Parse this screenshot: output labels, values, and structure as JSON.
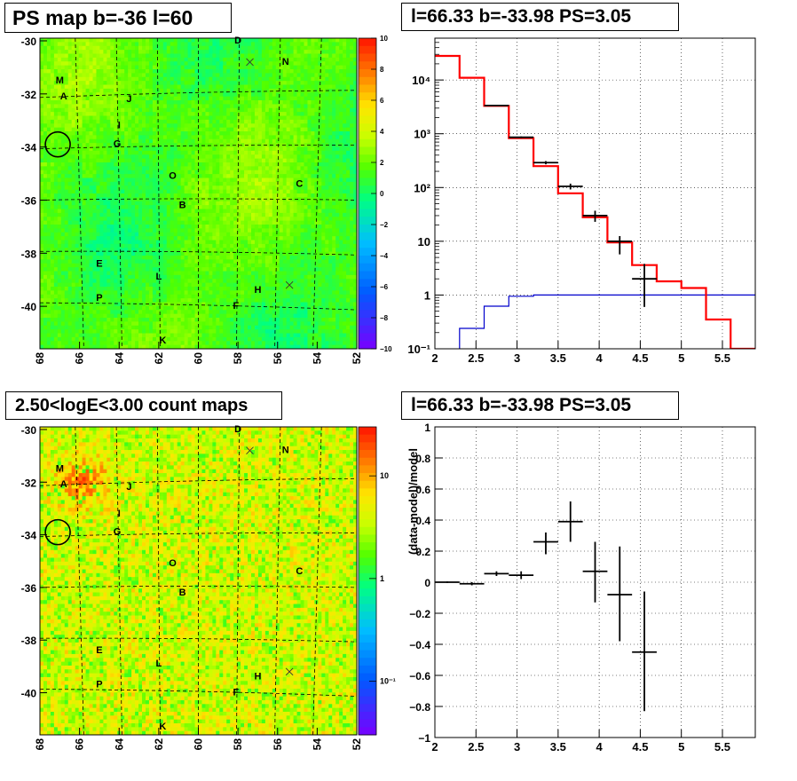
{
  "panels": {
    "ps_map": {
      "title": "PS map b=-36 l=60",
      "y_ticks": [
        -30,
        -32,
        -34,
        -36,
        -38,
        -40
      ],
      "x_ticks": [
        68,
        66,
        64,
        62,
        60,
        58,
        56,
        54,
        52
      ],
      "color_scale": "linear",
      "color_ticks": [
        10,
        8,
        6,
        4,
        2,
        0,
        -2,
        -4,
        -6,
        -8,
        -10
      ],
      "color_tick_labels": [
        "10",
        "8",
        "6",
        "4",
        "2",
        "0",
        "−2",
        "−4",
        "−6",
        "−8",
        "−10"
      ]
    },
    "count_map": {
      "title": "2.50<logE<3.00 count maps",
      "y_ticks": [
        -30,
        -32,
        -34,
        -36,
        -38,
        -40
      ],
      "x_ticks": [
        68,
        66,
        64,
        62,
        60,
        58,
        56,
        54,
        52
      ],
      "color_scale": "log",
      "color_tick_labels": [
        "10",
        "1",
        "10⁻¹"
      ]
    },
    "spectrum": {
      "title": "l=66.33 b=-33.98 PS=3.05"
    },
    "residual": {
      "title": "l=66.33 b=-33.98 PS=3.05"
    }
  },
  "source_labels": [
    {
      "text": "D",
      "l": 58.0,
      "b": -30.1
    },
    {
      "text": "N",
      "l": 55.6,
      "b": -30.9
    },
    {
      "text": "M",
      "l": 67.0,
      "b": -31.6
    },
    {
      "text": "A",
      "l": 66.8,
      "b": -32.2
    },
    {
      "text": "J",
      "l": 63.5,
      "b": -32.3
    },
    {
      "text": "I",
      "l": 64.0,
      "b": -33.3
    },
    {
      "text": "G",
      "l": 64.1,
      "b": -34.0
    },
    {
      "text": "O",
      "l": 61.3,
      "b": -35.2
    },
    {
      "text": "C",
      "l": 54.9,
      "b": -35.5
    },
    {
      "text": "B",
      "l": 60.8,
      "b": -36.3
    },
    {
      "text": "E",
      "l": 65.0,
      "b": -38.5
    },
    {
      "text": "L",
      "l": 62.0,
      "b": -39.0
    },
    {
      "text": "H",
      "l": 57.0,
      "b": -39.5
    },
    {
      "text": "P",
      "l": 65.0,
      "b": -39.8
    },
    {
      "text": "F",
      "l": 58.1,
      "b": -40.1
    },
    {
      "text": "K",
      "l": 61.8,
      "b": -41.4
    }
  ],
  "cross_markers": [
    {
      "l": 57.4,
      "b": -30.8
    },
    {
      "l": 55.4,
      "b": -39.2
    }
  ],
  "circle_marker": {
    "l": 67.1,
    "b": -33.9
  },
  "chart_data": [
    {
      "type": "heatmap",
      "title": "PS map b=-36 l=60",
      "xlim": [
        68,
        52
      ],
      "ylim": [
        -41.6,
        -29.9
      ],
      "zlim": [
        -10,
        10
      ],
      "description_values": "PS value field, mostly near 0 to 2 (green), with few localized peaks up to about 3"
    },
    {
      "type": "heatmap",
      "title": "2.50<logE<3.00 count maps",
      "xlim": [
        68,
        52
      ],
      "ylim": [
        -41.6,
        -29.9
      ],
      "zlim": [
        0.03,
        30
      ],
      "zscale": "log"
    },
    {
      "type": "line",
      "title": "l=66.33 b=-33.98 PS=3.05",
      "xlim": [
        2,
        5.9
      ],
      "ylim": [
        0.1,
        60000
      ],
      "yscale": "log",
      "x_ticks": [
        2,
        2.5,
        3,
        3.5,
        4,
        4.5,
        5,
        5.5
      ],
      "x_tick_labels": [
        "2",
        "2.5",
        "3",
        "3.5",
        "4",
        "4.5",
        "5",
        "5.5"
      ],
      "y_ticks": [
        0.1,
        1,
        10,
        100,
        1000,
        10000
      ],
      "y_tick_labels": [
        "10⁻¹",
        "1",
        "10",
        "10²",
        "10³",
        "10⁴"
      ],
      "bin_edges": [
        2.0,
        2.3,
        2.6,
        2.9,
        3.2,
        3.5,
        3.8,
        4.1,
        4.4,
        4.7,
        5.0,
        5.3,
        5.6,
        5.9
      ],
      "series": [
        {
          "color": "#ff0000",
          "style": "step",
          "values": [
            28000,
            11000,
            3300,
            830,
            250,
            78,
            28,
            9.5,
            3.6,
            1.8,
            1.35,
            0.35,
            0.1
          ]
        },
        {
          "color": "#0000cc",
          "style": "step",
          "values": [
            0.08,
            0.24,
            0.62,
            0.95,
            1.0,
            1.0,
            1.0,
            1.0,
            1.0,
            1.0,
            1.0,
            1.0,
            1.0
          ]
        },
        {
          "color": "#000000",
          "style": "errorbar",
          "points": [
            {
              "x": 2.75,
              "y": 3350,
              "xerr": 0.15,
              "lo": 3280,
              "hi": 3420
            },
            {
              "x": 3.05,
              "y": 860,
              "xerr": 0.15,
              "lo": 830,
              "hi": 890
            },
            {
              "x": 3.35,
              "y": 290,
              "xerr": 0.15,
              "lo": 270,
              "hi": 310
            },
            {
              "x": 3.65,
              "y": 105,
              "xerr": 0.15,
              "lo": 92,
              "hi": 118
            },
            {
              "x": 3.95,
              "y": 30,
              "xerr": 0.15,
              "lo": 23,
              "hi": 37
            },
            {
              "x": 4.25,
              "y": 10,
              "xerr": 0.15,
              "lo": 5.7,
              "hi": 12.5
            },
            {
              "x": 4.55,
              "y": 2.0,
              "xerr": 0.15,
              "lo": 0.6,
              "hi": 3.8
            }
          ]
        }
      ]
    },
    {
      "type": "scatter",
      "title": "l=66.33 b=-33.98 PS=3.05",
      "xlabel": "",
      "ylabel": "(data-model)/model",
      "xlim": [
        2,
        5.9
      ],
      "ylim": [
        -1,
        1
      ],
      "x_ticks": [
        2,
        2.5,
        3,
        3.5,
        4,
        4.5,
        5,
        5.5
      ],
      "x_tick_labels": [
        "2",
        "2.5",
        "3",
        "3.5",
        "4",
        "4.5",
        "5",
        "5.5"
      ],
      "y_ticks": [
        -1,
        -0.8,
        -0.6,
        -0.4,
        -0.2,
        0,
        0.2,
        0.4,
        0.6,
        0.8,
        1
      ],
      "y_tick_labels": [
        "−1",
        "−0.8",
        "−0.6",
        "−0.4",
        "−0.2",
        "0",
        "0.2",
        "0.4",
        "0.6",
        "0.8",
        "1"
      ],
      "points": [
        {
          "x": 2.15,
          "y": 0.0,
          "xerr": 0.15,
          "lo": -0.005,
          "hi": 0.005
        },
        {
          "x": 2.45,
          "y": -0.01,
          "xerr": 0.15,
          "lo": -0.02,
          "hi": 0.0
        },
        {
          "x": 2.75,
          "y": 0.055,
          "xerr": 0.15,
          "lo": 0.04,
          "hi": 0.07
        },
        {
          "x": 3.05,
          "y": 0.045,
          "xerr": 0.15,
          "lo": 0.02,
          "hi": 0.07
        },
        {
          "x": 3.35,
          "y": 0.26,
          "xerr": 0.15,
          "lo": 0.18,
          "hi": 0.32
        },
        {
          "x": 3.65,
          "y": 0.39,
          "xerr": 0.15,
          "lo": 0.26,
          "hi": 0.52
        },
        {
          "x": 3.95,
          "y": 0.07,
          "xerr": 0.15,
          "lo": -0.13,
          "hi": 0.26
        },
        {
          "x": 4.25,
          "y": -0.08,
          "xerr": 0.15,
          "lo": -0.38,
          "hi": 0.23
        },
        {
          "x": 4.55,
          "y": -0.45,
          "xerr": 0.15,
          "lo": -0.83,
          "hi": -0.06
        }
      ]
    }
  ]
}
